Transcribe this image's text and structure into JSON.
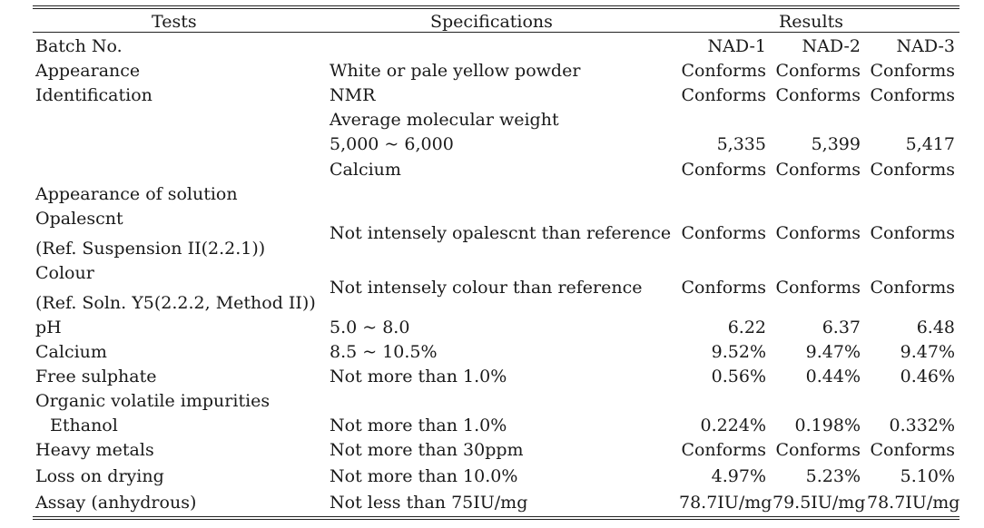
{
  "header": {
    "tests": "Tests",
    "specifications": "Specifications",
    "results": "Results"
  },
  "batch": {
    "label": "Batch No.",
    "nad1": "NAD-1",
    "nad2": "NAD-2",
    "nad3": "NAD-3"
  },
  "rows": {
    "appearance": {
      "test": "Appearance",
      "spec": "White or pale yellow powder",
      "r1": "Conforms",
      "r2": "Conforms",
      "r3": "Conforms"
    },
    "identification": {
      "test": "Identification",
      "spec": "NMR",
      "r1": "Conforms",
      "r2": "Conforms",
      "r3": "Conforms"
    },
    "amw": {
      "spec": "Average molecular weight"
    },
    "amw_range": {
      "spec": "5,000 ~ 6,000",
      "r1": "5,335",
      "r2": "5,399",
      "r3": "5,417"
    },
    "calcium_id": {
      "spec": "Calcium",
      "r1": "Conforms",
      "r2": "Conforms",
      "r3": "Conforms"
    },
    "app_solution": {
      "test": "Appearance of solution"
    },
    "opalescent": {
      "test1": "Opalescnt",
      "test2": "(Ref. Suspension II(2.2.1))",
      "spec": "Not intensely opalescnt than reference",
      "r1": "Conforms",
      "r2": "Conforms",
      "r3": "Conforms"
    },
    "colour": {
      "test1": "Colour",
      "test2": "(Ref. Soln. Y5(2.2.2, Method II))",
      "spec": "Not intensely colour than reference",
      "r1": "Conforms",
      "r2": "Conforms",
      "r3": "Conforms"
    },
    "ph": {
      "test": "pH",
      "spec": "5.0 ~ 8.0",
      "r1": "6.22",
      "r2": "6.37",
      "r3": "6.48"
    },
    "calcium": {
      "test": "Calcium",
      "spec": "8.5 ~ 10.5%",
      "r1": "9.52%",
      "r2": "9.47%",
      "r3": "9.47%"
    },
    "free_sulphate": {
      "test": "Free sulphate",
      "spec": "Not more than 1.0%",
      "r1": "0.56%",
      "r2": "0.44%",
      "r3": "0.46%"
    },
    "ovi": {
      "test": "Organic volatile impurities"
    },
    "ethanol": {
      "test": "Ethanol",
      "spec": "Not more than 1.0%",
      "r1": "0.224%",
      "r2": "0.198%",
      "r3": "0.332%"
    },
    "heavy_metals": {
      "test": "Heavy metals",
      "spec": "Not more than 30ppm",
      "r1": "Conforms",
      "r2": "Conforms",
      "r3": "Conforms"
    },
    "loss_drying": {
      "test": "Loss on drying",
      "spec": "Not more than 10.0%",
      "r1": "4.97%",
      "r2": "5.23%",
      "r3": "5.10%"
    },
    "assay": {
      "test": "Assay (anhydrous)",
      "spec": "Not less than 75IU/mg",
      "r1": "78.7IU/mg",
      "r2": "79.5IU/mg",
      "r3": "78.7IU/mg"
    }
  }
}
